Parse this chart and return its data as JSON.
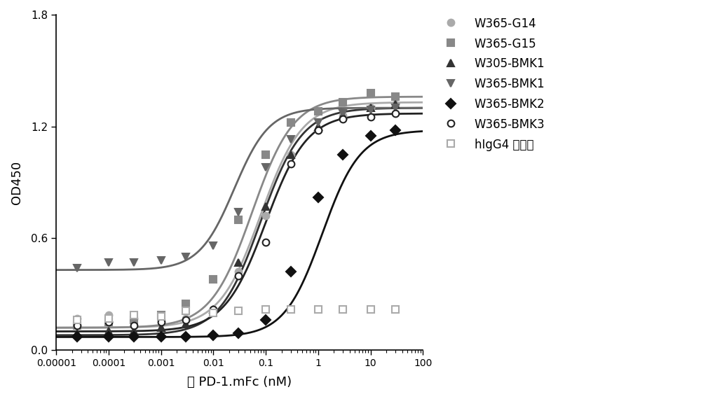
{
  "title": "",
  "xlabel": "人 PD-1.mFc (nM)",
  "ylabel": "OD450",
  "xlim": [
    1e-05,
    100
  ],
  "ylim": [
    0.0,
    1.8
  ],
  "yticks": [
    0.0,
    0.6,
    1.2,
    1.8
  ],
  "background_color": "#ffffff",
  "series": [
    {
      "label": "W365-G14",
      "color": "#aaaaaa",
      "marker": "o",
      "mfc": "#aaaaaa",
      "mec": "#aaaaaa",
      "linewidth": 2.0,
      "EC50": 0.08,
      "bottom": 0.12,
      "top": 1.33,
      "hill": 1.1
    },
    {
      "label": "W365-G15",
      "color": "#888888",
      "marker": "s",
      "mfc": "#888888",
      "mec": "#888888",
      "linewidth": 2.0,
      "EC50": 0.055,
      "bottom": 0.12,
      "top": 1.36,
      "hill": 1.1
    },
    {
      "label": "W305-BMK1",
      "color": "#333333",
      "marker": "^",
      "mfc": "#333333",
      "mec": "#333333",
      "linewidth": 2.0,
      "EC50": 0.08,
      "bottom": 0.08,
      "top": 1.3,
      "hill": 1.1
    },
    {
      "label": "W365-BMK1",
      "color": "#666666",
      "marker": "v",
      "mfc": "#666666",
      "mec": "#666666",
      "linewidth": 2.0,
      "EC50": 0.025,
      "bottom": 0.43,
      "top": 1.3,
      "hill": 1.3
    },
    {
      "label": "W365-BMK2",
      "color": "#111111",
      "marker": "D",
      "mfc": "#111111",
      "mec": "#111111",
      "linewidth": 2.0,
      "EC50": 1.2,
      "bottom": 0.07,
      "top": 1.18,
      "hill": 1.2
    },
    {
      "label": "W365-BMK3",
      "color": "#222222",
      "marker": "o",
      "mfc": "white",
      "mec": "#222222",
      "linewidth": 2.0,
      "EC50": 0.1,
      "bottom": 0.1,
      "top": 1.27,
      "hill": 1.1
    },
    {
      "label": "hIgG4 同种型",
      "color": "#aaaaaa",
      "marker": "s",
      "mfc": "white",
      "mec": "#aaaaaa",
      "linewidth": 0,
      "EC50": null,
      "bottom": 0.2,
      "top": 0.2,
      "hill": 1.0
    }
  ],
  "data_points": {
    "W365-G14": {
      "x": [
        2.5e-05,
        0.0001,
        0.0003,
        0.001,
        0.003,
        0.01,
        0.03,
        0.1,
        0.3,
        1.0,
        3.0,
        10.0,
        30.0
      ],
      "y": [
        0.17,
        0.19,
        0.17,
        0.16,
        0.17,
        0.22,
        0.42,
        0.72,
        1.05,
        1.18,
        1.26,
        1.3,
        1.32
      ]
    },
    "W365-G15": {
      "x": [
        2.5e-05,
        0.0001,
        0.0003,
        0.001,
        0.003,
        0.01,
        0.03,
        0.1,
        0.3,
        1.0,
        3.0,
        10.0,
        30.0
      ],
      "y": [
        0.13,
        0.15,
        0.16,
        0.19,
        0.25,
        0.38,
        0.7,
        1.05,
        1.22,
        1.28,
        1.33,
        1.38,
        1.36
      ]
    },
    "W305-BMK1": {
      "x": [
        2.5e-05,
        0.0001,
        0.0003,
        0.001,
        0.003,
        0.01,
        0.03,
        0.1,
        0.3,
        1.0,
        3.0,
        10.0,
        30.0
      ],
      "y": [
        0.09,
        0.1,
        0.1,
        0.12,
        0.14,
        0.22,
        0.47,
        0.77,
        1.05,
        1.2,
        1.26,
        1.3,
        1.32
      ]
    },
    "W365-BMK1": {
      "x": [
        2.5e-05,
        0.0001,
        0.0003,
        0.001,
        0.003,
        0.01,
        0.03,
        0.1,
        0.3,
        1.0,
        3.0,
        10.0,
        30.0
      ],
      "y": [
        0.44,
        0.47,
        0.47,
        0.48,
        0.5,
        0.56,
        0.74,
        0.98,
        1.13,
        1.22,
        1.27,
        1.29,
        1.3
      ]
    },
    "W365-BMK2": {
      "x": [
        2.5e-05,
        0.0001,
        0.0003,
        0.001,
        0.003,
        0.01,
        0.03,
        0.1,
        0.3,
        1.0,
        3.0,
        10.0,
        30.0
      ],
      "y": [
        0.07,
        0.07,
        0.07,
        0.07,
        0.07,
        0.08,
        0.09,
        0.16,
        0.42,
        0.82,
        1.05,
        1.15,
        1.18
      ]
    },
    "W365-BMK3": {
      "x": [
        2.5e-05,
        0.0001,
        0.0003,
        0.001,
        0.003,
        0.01,
        0.03,
        0.1,
        0.3,
        1.0,
        3.0,
        10.0,
        30.0
      ],
      "y": [
        0.13,
        0.15,
        0.13,
        0.15,
        0.16,
        0.22,
        0.4,
        0.58,
        1.0,
        1.18,
        1.24,
        1.25,
        1.27
      ]
    },
    "hIgG4 同种型": {
      "x": [
        2.5e-05,
        0.0001,
        0.0003,
        0.001,
        0.003,
        0.01,
        0.03,
        0.1,
        0.3,
        1.0,
        3.0,
        10.0,
        30.0
      ],
      "y": [
        0.16,
        0.17,
        0.19,
        0.18,
        0.21,
        0.2,
        0.21,
        0.22,
        0.22,
        0.22,
        0.22,
        0.22,
        0.22
      ]
    }
  }
}
